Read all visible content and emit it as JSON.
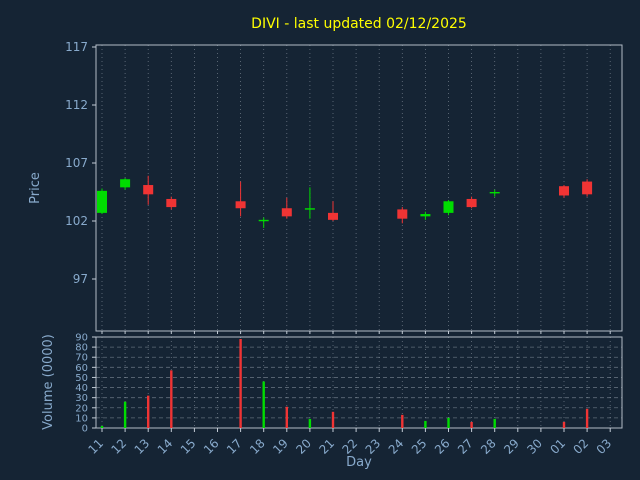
{
  "chart_data": {
    "type": "candlestick",
    "title": "DIVI - last updated 02/12/2025",
    "xlabel": "Day",
    "ylabel": "Price",
    "ylabel2": "Volume (0000)",
    "grid": true,
    "categories": [
      "11",
      "12",
      "13",
      "14",
      "15",
      "16",
      "17",
      "18",
      "19",
      "20",
      "21",
      "22",
      "23",
      "24",
      "25",
      "26",
      "27",
      "28",
      "29",
      "30",
      "01",
      "02",
      "03"
    ],
    "price_ticks": [
      117,
      112,
      107,
      102,
      97
    ],
    "price_range": [
      92.5,
      117.2
    ],
    "volume_ticks": [
      90,
      80,
      70,
      60,
      50,
      40,
      30,
      20,
      10,
      0
    ],
    "volume_max": 90,
    "candles": [
      {
        "day": "11",
        "o": 102.7,
        "h": 104.8,
        "l": 102.6,
        "c": 104.6,
        "v": 2
      },
      {
        "day": "12",
        "o": 104.9,
        "h": 105.7,
        "l": 104.7,
        "c": 105.6,
        "v": 26
      },
      {
        "day": "13",
        "o": 105.1,
        "h": 105.9,
        "l": 103.4,
        "c": 104.3,
        "v": 32
      },
      {
        "day": "14",
        "o": 103.9,
        "h": 104.1,
        "l": 103.0,
        "c": 103.2,
        "v": 57
      },
      {
        "day": "17",
        "o": 103.7,
        "h": 105.4,
        "l": 102.4,
        "c": 103.1,
        "v": 88
      },
      {
        "day": "18",
        "o": 102.0,
        "h": 102.3,
        "l": 101.4,
        "c": 102.1,
        "v": 46
      },
      {
        "day": "19",
        "o": 103.1,
        "h": 104.0,
        "l": 102.2,
        "c": 102.4,
        "v": 21
      },
      {
        "day": "20",
        "o": 103.0,
        "h": 104.9,
        "l": 102.2,
        "c": 103.1,
        "v": 9
      },
      {
        "day": "21",
        "o": 102.7,
        "h": 103.7,
        "l": 102.0,
        "c": 102.1,
        "v": 16
      },
      {
        "day": "24",
        "o": 103.0,
        "h": 103.2,
        "l": 101.8,
        "c": 102.2,
        "v": 13
      },
      {
        "day": "25",
        "o": 102.4,
        "h": 102.8,
        "l": 102.1,
        "c": 102.6,
        "v": 7
      },
      {
        "day": "26",
        "o": 102.7,
        "h": 103.8,
        "l": 102.5,
        "c": 103.7,
        "v": 10
      },
      {
        "day": "27",
        "o": 103.9,
        "h": 104.1,
        "l": 103.1,
        "c": 103.2,
        "v": 6
      },
      {
        "day": "28",
        "o": 104.4,
        "h": 104.7,
        "l": 104.1,
        "c": 104.5,
        "v": 9
      },
      {
        "day": "01",
        "o": 105.0,
        "h": 105.1,
        "l": 104.0,
        "c": 104.2,
        "v": 6
      },
      {
        "day": "02",
        "o": 105.4,
        "h": 105.6,
        "l": 104.1,
        "c": 104.3,
        "v": 19
      }
    ],
    "colors": {
      "background": "#152434",
      "up": "#00dd00",
      "down": "#f03434",
      "title": "#ffff00",
      "label": "#88aacc",
      "spine": "#c3ccd6",
      "vgrid": "#aeb8c2",
      "hgrid": "#9aa6b2"
    }
  }
}
